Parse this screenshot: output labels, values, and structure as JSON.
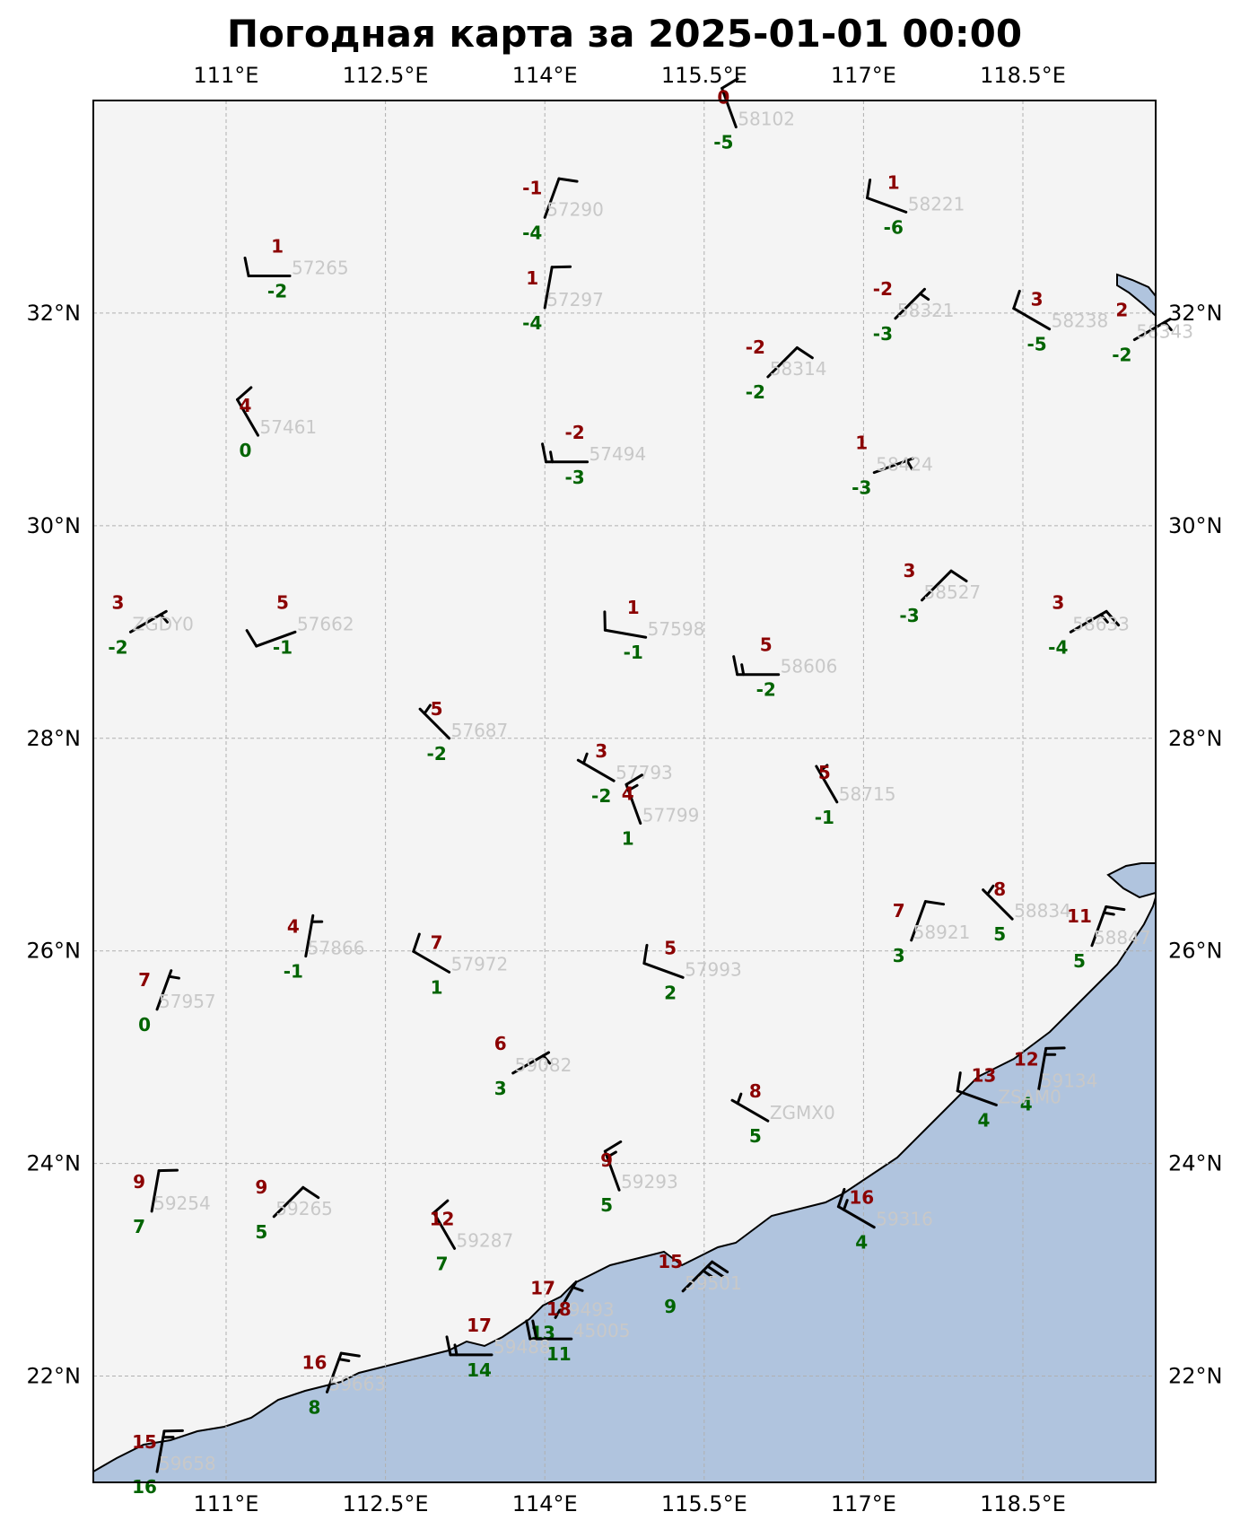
{
  "title": "Погодная карта за 2025-01-01 00:00",
  "colors": {
    "background": "#f4f4f4",
    "sea": "#b0c4de",
    "temperature": "#8b0000",
    "dewpoint": "#006400",
    "station_id": "#c8c8c8",
    "barb": "#000000"
  },
  "extent": {
    "lon": [
      109.75,
      119.75
    ],
    "lat": [
      21.0,
      34.0
    ]
  },
  "lon_ticks": [
    {
      "value": 111.0,
      "label": "111°E"
    },
    {
      "value": 112.5,
      "label": "112.5°E"
    },
    {
      "value": 114.0,
      "label": "114°E"
    },
    {
      "value": 115.5,
      "label": "115.5°E"
    },
    {
      "value": 117.0,
      "label": "117°E"
    },
    {
      "value": 118.5,
      "label": "118.5°E"
    }
  ],
  "lat_ticks": [
    {
      "value": 22,
      "label": "22°N"
    },
    {
      "value": 24,
      "label": "24°N"
    },
    {
      "value": 26,
      "label": "26°N"
    },
    {
      "value": 28,
      "label": "28°N"
    },
    {
      "value": 30,
      "label": "30°N"
    },
    {
      "value": 32,
      "label": "32°N"
    }
  ],
  "stations": [
    {
      "id": "58102",
      "lon": 115.8,
      "lat": 33.75,
      "t": "0",
      "td": "-5",
      "dir": 340,
      "kt": 10
    },
    {
      "id": "57290",
      "lon": 114.0,
      "lat": 32.9,
      "t": "-1",
      "td": "-4",
      "dir": 20,
      "kt": 10
    },
    {
      "id": "58221",
      "lon": 117.4,
      "lat": 32.95,
      "t": "1",
      "td": "-6",
      "dir": 290,
      "kt": 10
    },
    {
      "id": "57265",
      "lon": 111.6,
      "lat": 32.35,
      "t": "1",
      "td": "-2",
      "dir": 270,
      "kt": 10
    },
    {
      "id": "57297",
      "lon": 114.0,
      "lat": 32.05,
      "t": "1",
      "td": "-4",
      "dir": 10,
      "kt": 10
    },
    {
      "id": "58321",
      "lon": 117.3,
      "lat": 31.95,
      "t": "-2",
      "td": "-3",
      "dir": 45,
      "kt": 5
    },
    {
      "id": "58238",
      "lon": 118.75,
      "lat": 31.85,
      "t": "3",
      "td": "-5",
      "dir": 300,
      "kt": 10
    },
    {
      "id": "58343",
      "lon": 119.55,
      "lat": 31.75,
      "t": "2",
      "td": "-2",
      "dir": 60,
      "kt": 5
    },
    {
      "id": "58314",
      "lon": 116.1,
      "lat": 31.4,
      "t": "-2",
      "td": "-2",
      "dir": 45,
      "kt": 10
    },
    {
      "id": "57461",
      "lon": 111.3,
      "lat": 30.85,
      "t": "4",
      "td": "0",
      "dir": 330,
      "kt": 10
    },
    {
      "id": "57494",
      "lon": 114.4,
      "lat": 30.6,
      "t": "-2",
      "td": "-3",
      "dir": 270,
      "kt": 15
    },
    {
      "id": "58424",
      "lon": 117.1,
      "lat": 30.5,
      "t": "1",
      "td": "-3",
      "dir": 70,
      "kt": 5
    },
    {
      "id": "58527",
      "lon": 117.55,
      "lat": 29.3,
      "t": "3",
      "td": "-3",
      "dir": 45,
      "kt": 10
    },
    {
      "id": "ZGDY0",
      "lon": 110.1,
      "lat": 29.0,
      "t": "3",
      "td": "-2",
      "dir": 60,
      "kt": 5
    },
    {
      "id": "57662",
      "lon": 111.65,
      "lat": 29.0,
      "t": "5",
      "td": "-1",
      "dir": 250,
      "kt": 10
    },
    {
      "id": "58633",
      "lon": 118.95,
      "lat": 29.0,
      "t": "3",
      "td": "-4",
      "dir": 60,
      "kt": 15
    },
    {
      "id": "57598",
      "lon": 114.95,
      "lat": 28.95,
      "t": "1",
      "td": "-1",
      "dir": 280,
      "kt": 10
    },
    {
      "id": "58606",
      "lon": 116.2,
      "lat": 28.6,
      "t": "5",
      "td": "-2",
      "dir": 270,
      "kt": 15
    },
    {
      "id": "57687",
      "lon": 113.1,
      "lat": 28.0,
      "t": "5",
      "td": "-2",
      "dir": 315,
      "kt": 5
    },
    {
      "id": "57793",
      "lon": 114.65,
      "lat": 27.6,
      "t": "3",
      "td": "-2",
      "dir": 300,
      "kt": 5
    },
    {
      "id": "58715",
      "lon": 116.75,
      "lat": 27.4,
      "t": "5",
      "td": "-1",
      "dir": 330,
      "kt": 5
    },
    {
      "id": "57799",
      "lon": 114.9,
      "lat": 27.2,
      "t": "4",
      "td": "1",
      "dir": 340,
      "kt": 15
    },
    {
      "id": "58834",
      "lon": 118.4,
      "lat": 26.3,
      "t": "8",
      "td": "5",
      "dir": 315,
      "kt": 5
    },
    {
      "id": "57866",
      "lon": 111.75,
      "lat": 25.95,
      "t": "4",
      "td": "-1",
      "dir": 10,
      "kt": 5
    },
    {
      "id": "58921",
      "lon": 117.45,
      "lat": 26.1,
      "t": "7",
      "td": "3",
      "dir": 20,
      "kt": 10
    },
    {
      "id": "58847",
      "lon": 119.15,
      "lat": 26.05,
      "t": "11",
      "td": "5",
      "dir": 20,
      "kt": 15
    },
    {
      "id": "57972",
      "lon": 113.1,
      "lat": 25.8,
      "t": "7",
      "td": "1",
      "dir": 300,
      "kt": 10
    },
    {
      "id": "57993",
      "lon": 115.3,
      "lat": 25.75,
      "t": "5",
      "td": "2",
      "dir": 290,
      "kt": 10
    },
    {
      "id": "57957",
      "lon": 110.35,
      "lat": 25.45,
      "t": "7",
      "td": "0",
      "dir": 20,
      "kt": 5
    },
    {
      "id": "59082",
      "lon": 113.7,
      "lat": 24.85,
      "t": "6",
      "td": "3",
      "dir": 60,
      "kt": 5
    },
    {
      "id": "59134",
      "lon": 118.65,
      "lat": 24.7,
      "t": "12",
      "td": "4",
      "dir": 10,
      "kt": 15
    },
    {
      "id": "ZSAM0",
      "lon": 118.25,
      "lat": 24.55,
      "t": "13",
      "td": "4",
      "dir": 290,
      "kt": 10
    },
    {
      "id": "ZGMX0",
      "lon": 116.1,
      "lat": 24.4,
      "t": "8",
      "td": "5",
      "dir": 300,
      "kt": 5
    },
    {
      "id": "59293",
      "lon": 114.7,
      "lat": 23.75,
      "t": "9",
      "td": "5",
      "dir": 340,
      "kt": 15
    },
    {
      "id": "59254",
      "lon": 110.3,
      "lat": 23.55,
      "t": "9",
      "td": "7",
      "dir": 10,
      "kt": 10
    },
    {
      "id": "59265",
      "lon": 111.45,
      "lat": 23.5,
      "t": "9",
      "td": "5",
      "dir": 45,
      "kt": 10
    },
    {
      "id": "59316",
      "lon": 117.1,
      "lat": 23.4,
      "t": "16",
      "td": "4",
      "dir": 300,
      "kt": 15
    },
    {
      "id": "59287",
      "lon": 113.15,
      "lat": 23.2,
      "t": "12",
      "td": "7",
      "dir": 330,
      "kt": 10
    },
    {
      "id": "59501",
      "lon": 115.3,
      "lat": 22.8,
      "t": "15",
      "td": "9",
      "dir": 45,
      "kt": 25
    },
    {
      "id": "59493",
      "lon": 114.1,
      "lat": 22.55,
      "t": "17",
      "td": "13",
      "dir": 30,
      "kt": 5
    },
    {
      "id": "45005",
      "lon": 114.25,
      "lat": 22.35,
      "t": "18",
      "td": "11",
      "dir": 270,
      "kt": 20
    },
    {
      "id": "59488",
      "lon": 113.5,
      "lat": 22.2,
      "t": "17",
      "td": "14",
      "dir": 270,
      "kt": 15
    },
    {
      "id": "59663",
      "lon": 111.95,
      "lat": 21.85,
      "t": "16",
      "td": "8",
      "dir": 20,
      "kt": 15
    },
    {
      "id": "59658",
      "lon": 110.35,
      "lat": 21.1,
      "t": "15",
      "td": "16",
      "dir": 10,
      "kt": 15
    }
  ]
}
